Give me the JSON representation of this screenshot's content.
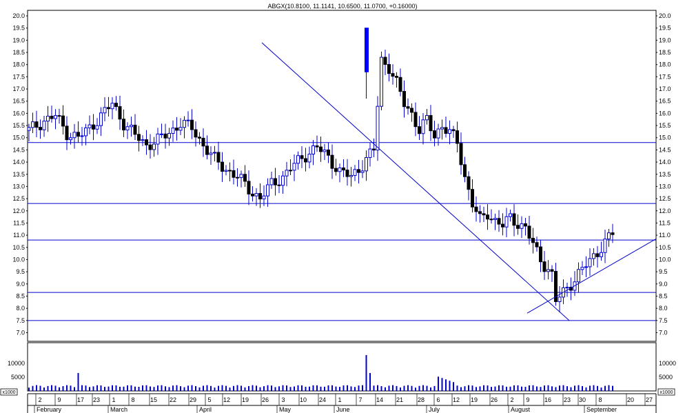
{
  "chart_data": {
    "type": "candlestick",
    "title": "ABGX(10.8100, 11.1141, 10.6500, 11.0700, +0.16000)",
    "price_axis": {
      "min": 6.5,
      "max": 20.0,
      "ticks": [
        "7.0",
        "7.5",
        "8.0",
        "8.5",
        "9.0",
        "9.5",
        "10.0",
        "10.5",
        "11.0",
        "11.5",
        "12.0",
        "12.5",
        "13.0",
        "13.5",
        "14.0",
        "14.5",
        "15.0",
        "15.5",
        "16.0",
        "16.5",
        "17.0",
        "17.5",
        "18.0",
        "18.5",
        "19.0",
        "19.5",
        "20.0"
      ]
    },
    "volume_axis": {
      "min": 0,
      "max": 13000,
      "ticks": [
        "5000",
        "10000"
      ],
      "unit_label": "x1000"
    },
    "x_axis": {
      "day_ticks": [
        "2",
        "9",
        "17",
        "23",
        "1",
        "8",
        "15",
        "22",
        "29",
        "5",
        "12",
        "19",
        "26",
        "3",
        "10",
        "24",
        "1",
        "7",
        "14",
        "21",
        "28",
        "6",
        "12",
        "19",
        "26",
        "2",
        "9",
        "16",
        "23",
        "30",
        "8",
        "20",
        "27"
      ],
      "months": [
        "February",
        "March",
        "April",
        "May",
        "June",
        "July",
        "August",
        "September"
      ]
    },
    "horizontal_levels": [
      14.8,
      12.3,
      10.8,
      8.65,
      7.5
    ],
    "trendlines": [
      {
        "from": [
          "Apr 26",
          18.9
        ],
        "to": [
          "Aug 26",
          7.5
        ]
      },
      {
        "from": [
          "Aug 9",
          7.8
        ],
        "to": [
          "Sep 30",
          10.85
        ]
      }
    ],
    "series": [
      {
        "name": "Price"
      },
      {
        "name": "Volume"
      }
    ],
    "colors": {
      "line": "#0000cc",
      "up": "#ffffff",
      "down": "#000000",
      "volume": "#0000cc",
      "highlight": "#0000ff"
    }
  }
}
